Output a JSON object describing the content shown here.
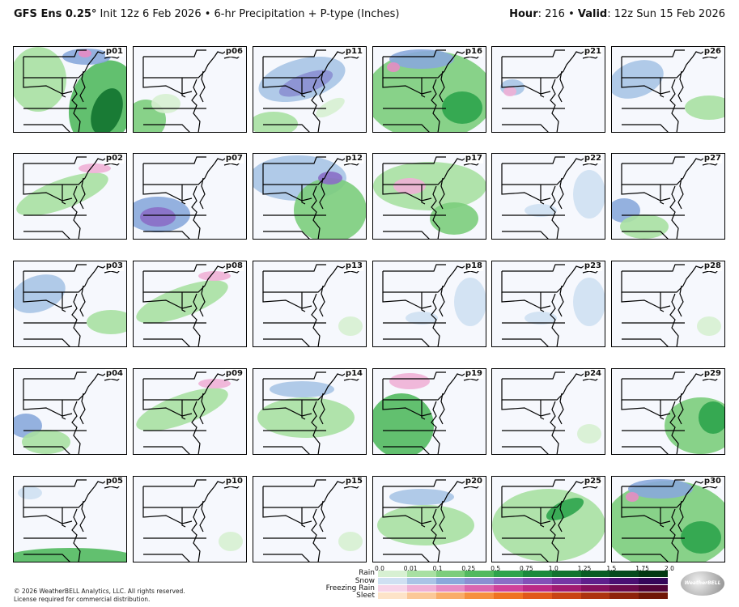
{
  "header": {
    "title_bold": "GFS Ens 0.25°",
    "title_rest": " Init 12z 6 Feb 2026 • 6-hr Precipitation + P-type (Inches)",
    "hour_label": "Hour",
    "hour_value": ": 216 • ",
    "valid_label": "Valid",
    "valid_value": ": 12z Sun 15 Feb 2026"
  },
  "members": [
    "p01",
    "p06",
    "p11",
    "p16",
    "p21",
    "p26",
    "p02",
    "p07",
    "p12",
    "p17",
    "p22",
    "p27",
    "p03",
    "p08",
    "p13",
    "p18",
    "p23",
    "p28",
    "p04",
    "p09",
    "p14",
    "p19",
    "p24",
    "p29",
    "p05",
    "p10",
    "p15",
    "p20",
    "p25",
    "p30"
  ],
  "panel_patterns": [
    "gsn",
    "wg",
    "bsn",
    "gsk",
    "pk",
    "bs",
    "gw",
    "pv",
    "bsg",
    "gb",
    "bl",
    "vg",
    "bs",
    "gw",
    "wl",
    "bl",
    "bl",
    "wl",
    "vg",
    "gw",
    "bg",
    "pg",
    "wl",
    "ge",
    "gs",
    "wl",
    "wl",
    "bg",
    "gn",
    "gsk"
  ],
  "legend": {
    "rows": [
      "Rain",
      "Snow",
      "Freezing Rain",
      "Sleet"
    ],
    "ticks": [
      "0.0",
      "0.01",
      "0.1",
      "0.25",
      "0.5",
      "0.75",
      "1.0",
      "1.25",
      "1.5",
      "1.75",
      "2.0"
    ],
    "colors": {
      "rain": [
        "#d7f0d2",
        "#a8e0a2",
        "#7ccd7c",
        "#52b95f",
        "#2ea44c",
        "#1b8a3c",
        "#12732f",
        "#0a5c24",
        "#064a1c",
        "#033812"
      ],
      "snow": [
        "#cfe0f2",
        "#a9c4e6",
        "#8aa8db",
        "#8b8fd2",
        "#8a6ec6",
        "#8350b7",
        "#7636a4",
        "#5f1f8c",
        "#4a0f72",
        "#35075a"
      ],
      "freezing_rain": [
        "#f7d4e8",
        "#efb0d6",
        "#e68cc4",
        "#db66b0",
        "#cf429a",
        "#bb2a86",
        "#a11b71",
        "#85105d",
        "#6b0a4b",
        "#520538"
      ],
      "sleet": [
        "#fde3c8",
        "#fbc898",
        "#f9ad6a",
        "#f6903f",
        "#ef7322",
        "#e1581a",
        "#c94414",
        "#ad330f",
        "#8e230b",
        "#701707"
      ]
    }
  },
  "footer": {
    "copyright": "© 2026 WeatherBELL Analytics, LLC. All rights reserved.",
    "license": "License required for commercial distribution."
  },
  "logo_text": "WeatherBELL"
}
